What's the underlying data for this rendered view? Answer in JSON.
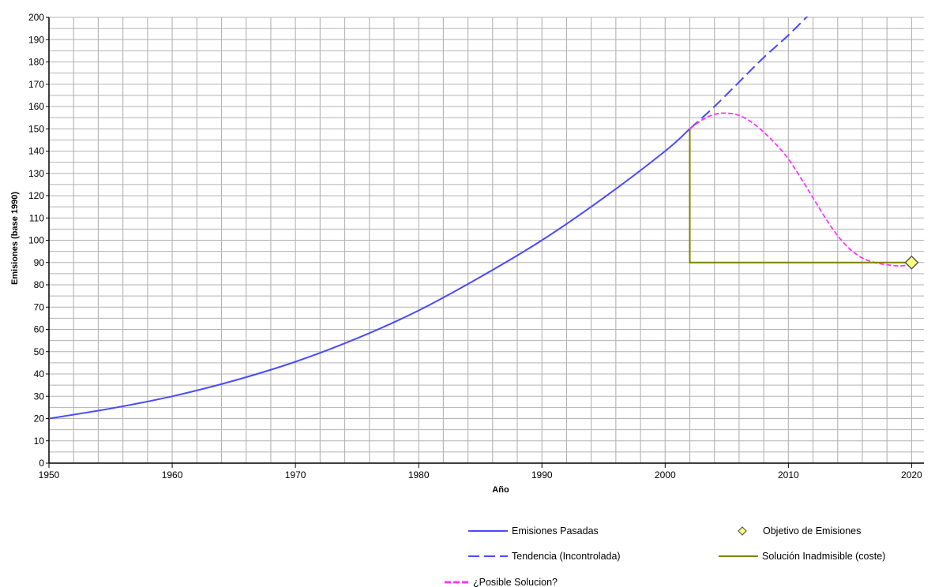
{
  "chart_data": {
    "type": "line",
    "title": "",
    "xlabel": "Año",
    "ylabel": "Emisiones (base 1990)",
    "xlim": [
      1950,
      2021
    ],
    "ylim": [
      0,
      200
    ],
    "x_ticks": [
      1950,
      1960,
      1970,
      1980,
      1990,
      2000,
      2010,
      2020
    ],
    "y_ticks": [
      0,
      10,
      20,
      30,
      40,
      50,
      60,
      70,
      80,
      90,
      100,
      110,
      120,
      130,
      140,
      150,
      160,
      170,
      180,
      190,
      200
    ],
    "grid": true,
    "legend_position": "bottom",
    "series": [
      {
        "name": "Emisiones Pasadas",
        "color": "#4a4aff",
        "style": "solid",
        "x": [
          1950,
          1955,
          1960,
          1965,
          1970,
          1975,
          1980,
          1985,
          1990,
          1995,
          2000,
          2002
        ],
        "y": [
          20,
          24.5,
          30,
          37,
          45.5,
          56,
          68.5,
          83.5,
          100,
          119,
          140,
          150
        ]
      },
      {
        "name": "Tendencia (Incontrolada)",
        "color": "#4a4aff",
        "style": "dashdot",
        "x": [
          2002,
          2004,
          2006,
          2008,
          2010,
          2012
        ],
        "y": [
          150,
          160,
          171,
          182,
          192,
          203
        ]
      },
      {
        "name": "¿Posible Solucion?",
        "color": "#ff33ff",
        "style": "dashed",
        "x": [
          2002,
          2003,
          2004,
          2005,
          2006,
          2007,
          2008,
          2009,
          2010,
          2011,
          2012,
          2013,
          2014,
          2015,
          2016,
          2017,
          2018,
          2019,
          2020
        ],
        "y": [
          150,
          154,
          156.5,
          157,
          156,
          153,
          148.5,
          143,
          136.5,
          128,
          119,
          110,
          102,
          96,
          92,
          90,
          89,
          88.5,
          89
        ]
      },
      {
        "name": "Solución Inadmisible (coste)",
        "color": "#808000",
        "style": "solid",
        "x": [
          2002,
          2002,
          2020
        ],
        "y": [
          150,
          90,
          90
        ]
      },
      {
        "name": "Objetivo de Emisiones",
        "color": "#ffff80",
        "style": "marker",
        "x": [
          2020
        ],
        "y": [
          90
        ]
      }
    ]
  }
}
